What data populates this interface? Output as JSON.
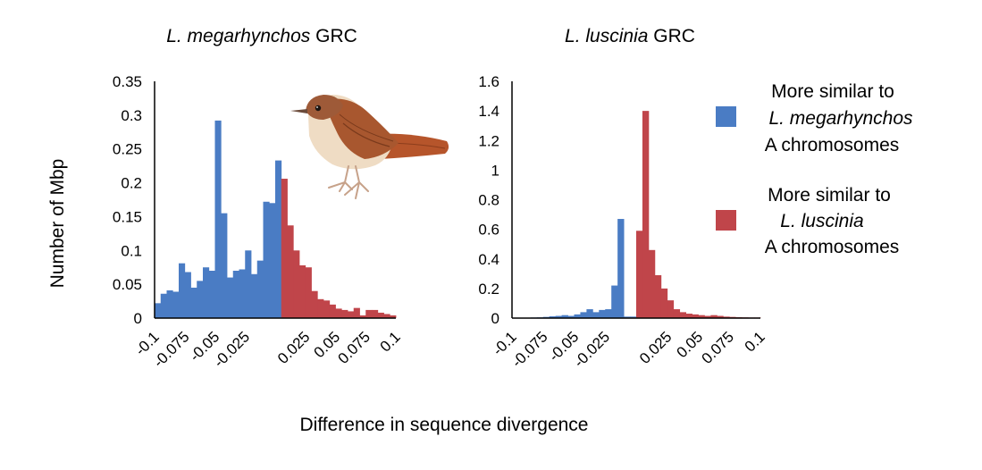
{
  "figure": {
    "ylabel": "Number of Mbp",
    "xlabel": "Difference in sequence divergence",
    "colors": {
      "blue": "#4a7cc4",
      "red": "#c0454a"
    },
    "legend": [
      {
        "color_key": "blue",
        "lines": [
          {
            "text": "More similar to",
            "italic": false
          },
          {
            "text": "L. megarhynchos",
            "italic": true
          },
          {
            "text": "A chromosomes",
            "italic": false
          }
        ]
      },
      {
        "color_key": "red",
        "lines": [
          {
            "text": "More similar to",
            "italic": false
          },
          {
            "text": "L. luscinia",
            "italic": true
          },
          {
            "text": "A chromosomes",
            "italic": false
          }
        ]
      }
    ]
  },
  "chart_data": [
    {
      "type": "bar",
      "title_italic": "L. megarhynchos",
      "title_rest": " GRC",
      "x_range": [
        -0.1,
        0.1
      ],
      "bin_width": 0.005,
      "ylim": [
        0,
        0.35
      ],
      "y_ticks": [
        "0",
        "0.05",
        "0.1",
        "0.15",
        "0.2",
        "0.25",
        "0.3",
        "0.35"
      ],
      "y_tick_values": [
        0,
        0.05,
        0.1,
        0.15,
        0.2,
        0.25,
        0.3,
        0.35
      ],
      "x_ticks": [
        "-0.1",
        "-0.075",
        "-0.05",
        "-0.025",
        "0.025",
        "0.05",
        "0.075",
        "0.1"
      ],
      "x_tick_values": [
        -0.1,
        -0.075,
        -0.05,
        -0.025,
        0.025,
        0.05,
        0.075,
        0.1
      ],
      "series": [
        {
          "name": "More similar to L. megarhynchos A chromosomes",
          "color_key": "blue",
          "values": [
            0.022,
            0.036,
            0.041,
            0.039,
            0.081,
            0.068,
            0.045,
            0.055,
            0.075,
            0.07,
            0.292,
            0.155,
            0.06,
            0.07,
            0.072,
            0.1,
            0.065,
            0.085,
            0.172,
            0.17,
            0.233
          ]
        },
        {
          "name": "More similar to L. luscinia A chromosomes",
          "color_key": "red",
          "values": [
            0.206,
            0.137,
            0.1,
            0.078,
            0.075,
            0.04,
            0.028,
            0.026,
            0.02,
            0.014,
            0.012,
            0.01,
            0.015,
            0.004,
            0.012,
            0.012,
            0.008,
            0.006,
            0.004
          ]
        }
      ]
    },
    {
      "type": "bar",
      "title_italic": "L. luscinia",
      "title_rest": " GRC",
      "x_range": [
        -0.1,
        0.1
      ],
      "bin_width": 0.005,
      "ylim": [
        0,
        1.6
      ],
      "y_ticks": [
        "0",
        "0.2",
        "0.4",
        "0.6",
        "0.8",
        "1",
        "1.2",
        "1.4",
        "1.6"
      ],
      "y_tick_values": [
        0,
        0.2,
        0.4,
        0.6,
        0.8,
        1,
        1.2,
        1.4,
        1.6
      ],
      "x_ticks": [
        "-0.1",
        "-0.075",
        "-0.05",
        "-0.025",
        "0.025",
        "0.05",
        "0.075",
        "0.1"
      ],
      "x_tick_values": [
        -0.1,
        -0.075,
        -0.05,
        -0.025,
        0.025,
        0.05,
        0.075,
        0.1
      ],
      "series": [
        {
          "name": "More similar to L. megarhynchos A chromosomes",
          "color_key": "blue",
          "values": [
            0.002,
            0.002,
            0.003,
            0.004,
            0.005,
            0.008,
            0.012,
            0.015,
            0.02,
            0.015,
            0.025,
            0.04,
            0.06,
            0.04,
            0.055,
            0.06,
            0.22,
            0.67,
            0.01,
            0.01
          ]
        },
        {
          "name": "More similar to L. luscinia A chromosomes",
          "color_key": "red",
          "values": [
            0.59,
            1.4,
            0.46,
            0.29,
            0.2,
            0.12,
            0.06,
            0.04,
            0.03,
            0.025,
            0.02,
            0.015,
            0.02,
            0.015,
            0.01,
            0.008,
            0.006,
            0.005,
            0.004,
            0.004
          ]
        }
      ]
    }
  ]
}
